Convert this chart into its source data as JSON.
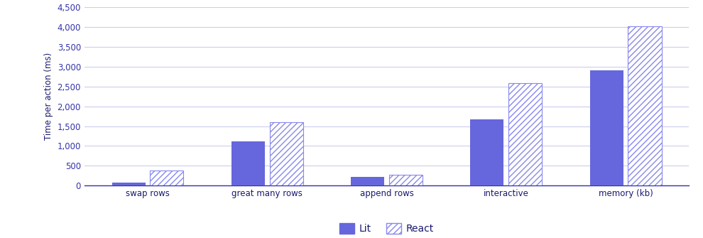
{
  "categories": [
    "swap rows",
    "great many rows",
    "append rows",
    "interactive",
    "memory (kb)"
  ],
  "lit_values": [
    75,
    1120,
    220,
    1670,
    2900
  ],
  "react_values": [
    390,
    1600,
    280,
    2590,
    4020
  ],
  "lit_color": "#6666dd",
  "react_color": "#ffffff",
  "react_edge_color": "#8888ee",
  "react_hatch_color": "#8888ee",
  "hatch_pattern": "////",
  "ylabel": "Time per action (ms)",
  "ylim": [
    0,
    4500
  ],
  "yticks": [
    0,
    500,
    1000,
    1500,
    2000,
    2500,
    3000,
    3500,
    4000,
    4500
  ],
  "legend_labels": [
    "Lit",
    "React"
  ],
  "bar_width": 0.28,
  "tick_fontsize": 8.5,
  "ylabel_fontsize": 8.5,
  "legend_fontsize": 10,
  "tick_color": "#3333aa",
  "label_color": "#1a1a6e",
  "grid_color": "#ccccee",
  "spine_color": "#3333aa"
}
